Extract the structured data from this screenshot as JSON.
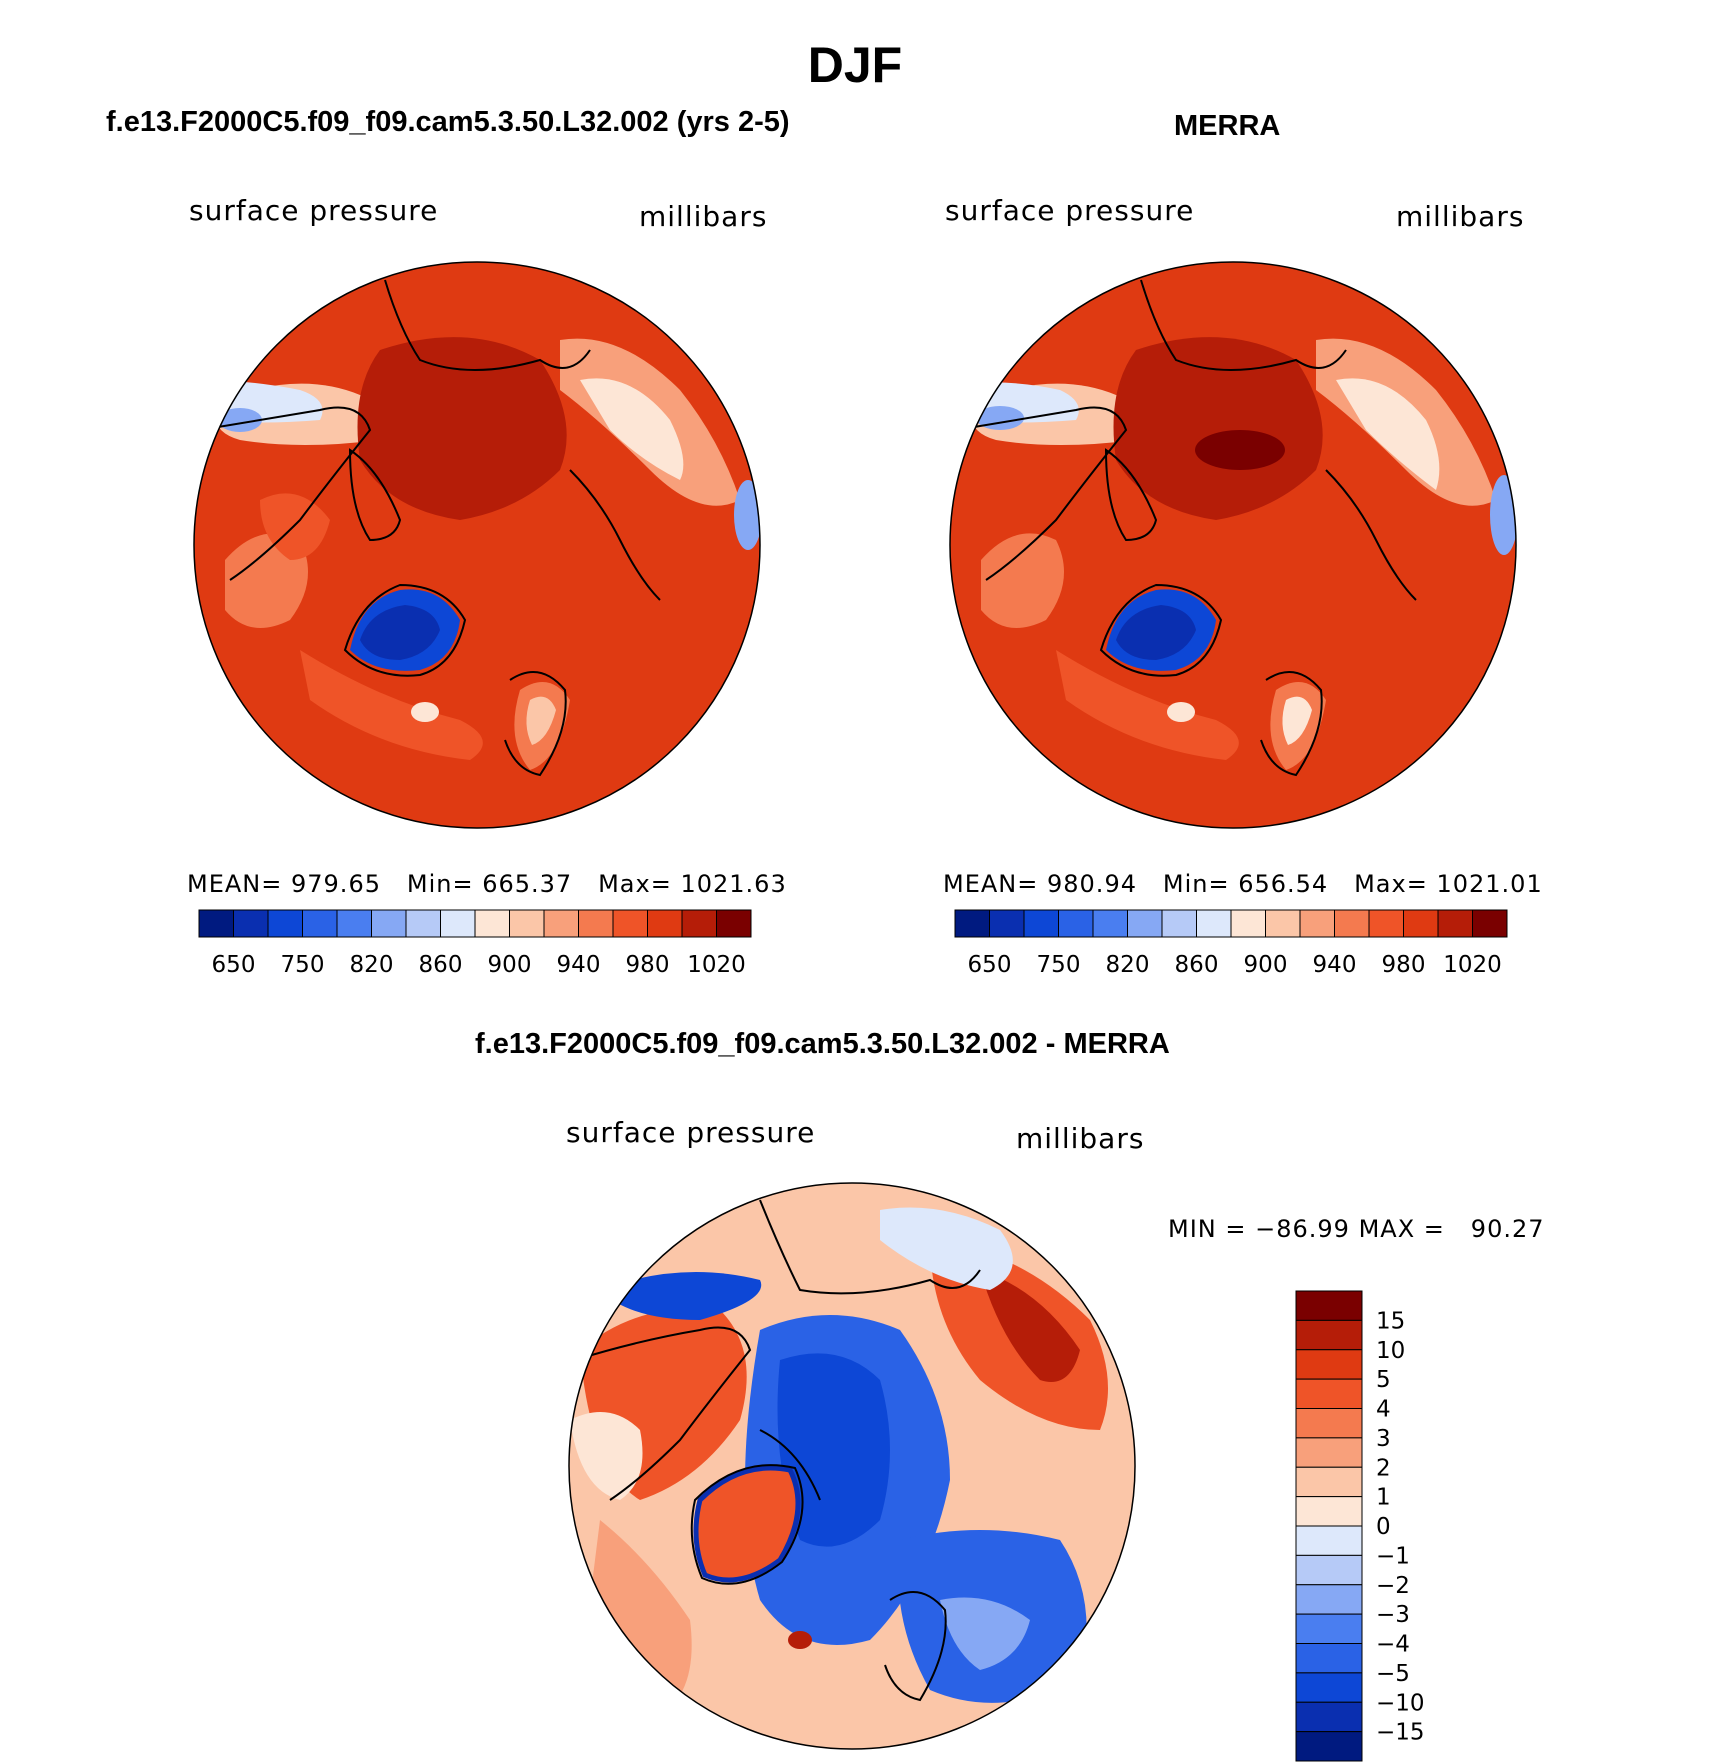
{
  "page_title": "DJF",
  "chart_data": [
    {
      "type": "heatmap",
      "projection": "north polar stereographic",
      "title": "f.e13.F2000C5.f09_f09.cam5.3.50.L32.002 (yrs 2-5)",
      "left_label": "surface pressure",
      "right_label": "millibars",
      "stats": {
        "mean_label": "MEAN=",
        "mean": "979.65",
        "min_label": "Min=",
        "min": "665.37",
        "max_label": "Max=",
        "max": "1021.63"
      },
      "colorbar": {
        "orientation": "horizontal",
        "levels": [
          650,
          750,
          820,
          860,
          900,
          940,
          980,
          1020
        ],
        "colors": [
          "#001a80",
          "#0a2fb0",
          "#0d47d6",
          "#2a62e6",
          "#4a7ef0",
          "#86a8f4",
          "#b6caf7",
          "#dde8fb",
          "#fde6d6",
          "#fbc6a8",
          "#f8a07b",
          "#f47a4f",
          "#ef5428",
          "#df3a12",
          "#b51d08",
          "#7a0000"
        ]
      }
    },
    {
      "type": "heatmap",
      "projection": "north polar stereographic",
      "title": "MERRA",
      "left_label": "surface pressure",
      "right_label": "millibars",
      "stats": {
        "mean_label": "MEAN=",
        "mean": "980.94",
        "min_label": "Min=",
        "min": "656.54",
        "max_label": "Max=",
        "max": "1021.01"
      },
      "colorbar": {
        "orientation": "horizontal",
        "levels": [
          650,
          750,
          820,
          860,
          900,
          940,
          980,
          1020
        ],
        "colors": [
          "#001a80",
          "#0a2fb0",
          "#0d47d6",
          "#2a62e6",
          "#4a7ef0",
          "#86a8f4",
          "#b6caf7",
          "#dde8fb",
          "#fde6d6",
          "#fbc6a8",
          "#f8a07b",
          "#f47a4f",
          "#ef5428",
          "#df3a12",
          "#b51d08",
          "#7a0000"
        ]
      }
    },
    {
      "type": "heatmap",
      "projection": "north polar stereographic",
      "title": "f.e13.F2000C5.f09_f09.cam5.3.50.L32.002 - MERRA",
      "left_label": "surface pressure",
      "right_label": "millibars",
      "stats": {
        "min_label": "MIN =",
        "min": "−86.99",
        "max_label": "MAX =",
        "max": "90.27"
      },
      "colorbar": {
        "orientation": "vertical",
        "levels": [
          "15",
          "10",
          "5",
          "4",
          "3",
          "2",
          "1",
          "0",
          "−1",
          "−2",
          "−3",
          "−4",
          "−5",
          "−10",
          "−15"
        ],
        "colors": [
          "#7a0000",
          "#b51d08",
          "#df3a12",
          "#ef5428",
          "#f47a4f",
          "#f8a07b",
          "#fbc6a8",
          "#fde6d6",
          "#dde8fb",
          "#b6caf7",
          "#86a8f4",
          "#4a7ef0",
          "#2a62e6",
          "#0d47d6",
          "#0a2fb0",
          "#001a80"
        ]
      }
    }
  ]
}
